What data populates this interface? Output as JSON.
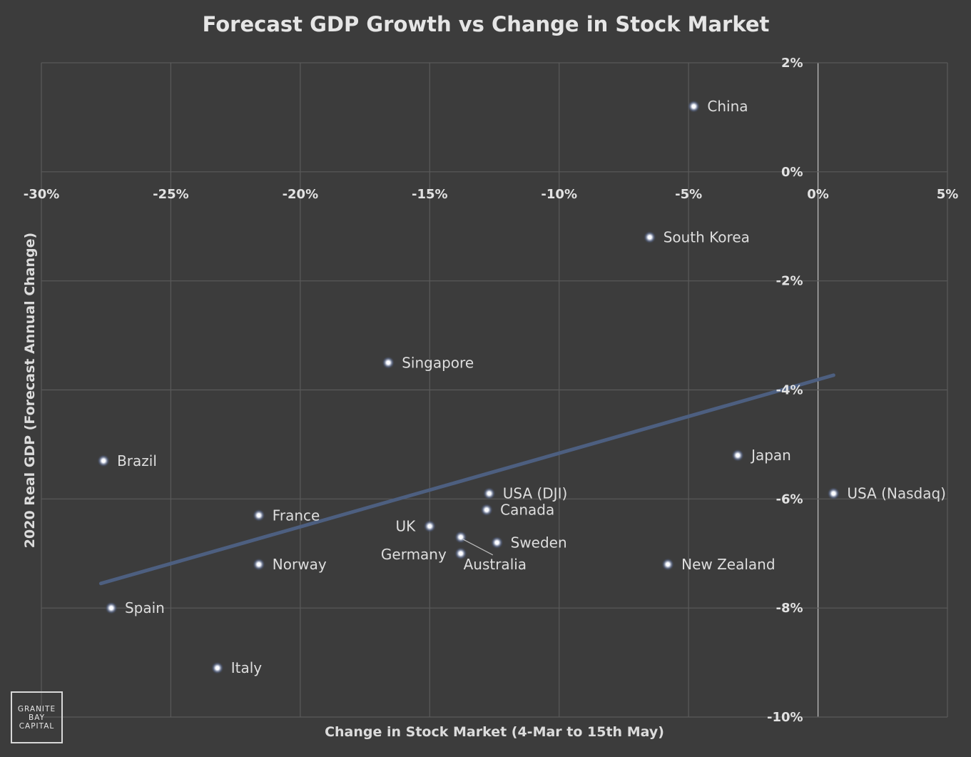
{
  "chart_data": {
    "type": "scatter",
    "title": "Forecast GDP Growth vs Change in Stock Market",
    "xlabel": "Change in Stock Market (4-Mar to 15th May)",
    "ylabel": "2020 Real GDP (Forecast Annual Change)",
    "xlim": [
      -0.3,
      0.05
    ],
    "ylim": [
      -0.1,
      0.02
    ],
    "x_ticks": [
      -0.3,
      -0.25,
      -0.2,
      -0.15,
      -0.1,
      -0.05,
      0.0,
      0.05
    ],
    "x_tick_labels": [
      "-30%",
      "-25%",
      "-20%",
      "-15%",
      "-10%",
      "-5%",
      "0%",
      "5%"
    ],
    "y_ticks": [
      0.02,
      0.0,
      -0.02,
      -0.04,
      -0.06,
      -0.08,
      -0.1
    ],
    "y_tick_labels": [
      "2%",
      "0%",
      "-2%",
      "-4%",
      "-6%",
      "-8%",
      "-10%"
    ],
    "grid": true,
    "legend": "none",
    "colors": {
      "background": "#3c3c3c",
      "grid": "#5a5a5a",
      "text": "#e2e2e2",
      "trend": "#4d5f80",
      "point": "#e8eaf2"
    },
    "points": [
      {
        "label": "China",
        "x": -0.048,
        "y": 0.012
      },
      {
        "label": "South Korea",
        "x": -0.065,
        "y": -0.012
      },
      {
        "label": "Singapore",
        "x": -0.166,
        "y": -0.035
      },
      {
        "label": "Brazil",
        "x": -0.276,
        "y": -0.053
      },
      {
        "label": "Japan",
        "x": -0.031,
        "y": -0.052
      },
      {
        "label": "USA (DJI)",
        "x": -0.127,
        "y": -0.059
      },
      {
        "label": "USA (Nasdaq)",
        "x": 0.006,
        "y": -0.059
      },
      {
        "label": "Canada",
        "x": -0.128,
        "y": -0.062
      },
      {
        "label": "France",
        "x": -0.216,
        "y": -0.063
      },
      {
        "label": "UK",
        "x": -0.15,
        "y": -0.065
      },
      {
        "label": "Australia",
        "x": -0.138,
        "y": -0.067
      },
      {
        "label": "Sweden",
        "x": -0.124,
        "y": -0.068
      },
      {
        "label": "Germany",
        "x": -0.138,
        "y": -0.07
      },
      {
        "label": "Norway",
        "x": -0.216,
        "y": -0.072
      },
      {
        "label": "New Zealand",
        "x": -0.058,
        "y": -0.072
      },
      {
        "label": "Spain",
        "x": -0.273,
        "y": -0.08
      },
      {
        "label": "Italy",
        "x": -0.232,
        "y": -0.091
      }
    ],
    "trendline": {
      "x": [
        -0.277,
        0.006
      ],
      "y": [
        -0.0755,
        -0.0373
      ]
    }
  },
  "logo": {
    "lines": [
      "GRANITE",
      "BAY",
      "CAPITAL"
    ]
  }
}
